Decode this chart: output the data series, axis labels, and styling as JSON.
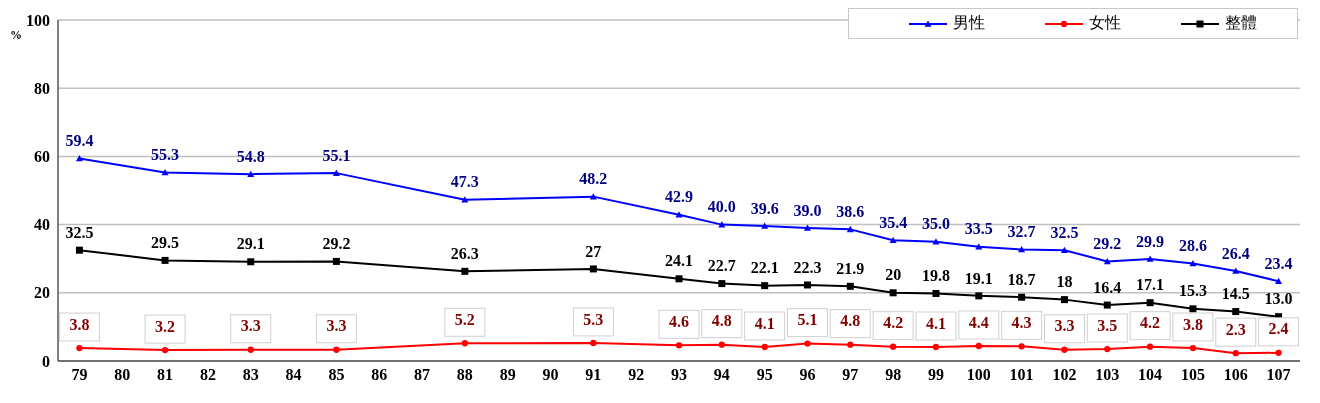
{
  "chart_data": {
    "type": "line",
    "ylabel": "%",
    "x": [
      79,
      81,
      83,
      85,
      88,
      91,
      93,
      94,
      95,
      96,
      97,
      98,
      99,
      100,
      101,
      102,
      103,
      104,
      105,
      106,
      107
    ],
    "xlim": [
      78.5,
      107.5
    ],
    "xticks": [
      79,
      80,
      81,
      82,
      83,
      84,
      85,
      86,
      87,
      88,
      89,
      90,
      91,
      92,
      93,
      94,
      95,
      96,
      97,
      98,
      99,
      100,
      101,
      102,
      103,
      104,
      105,
      106,
      107
    ],
    "ylim": [
      0,
      100
    ],
    "yticks": [
      0,
      20,
      40,
      60,
      80,
      100
    ],
    "grid": "y",
    "legend": "top right",
    "line_style": "solid",
    "series": [
      {
        "name": "男性",
        "color": "#0000ff",
        "marker": "triangle",
        "values": [
          59.4,
          55.3,
          54.8,
          55.1,
          47.3,
          48.2,
          42.9,
          40.0,
          39.6,
          39.0,
          38.6,
          35.4,
          35.0,
          33.5,
          32.7,
          32.5,
          29.2,
          29.9,
          28.6,
          26.4,
          23.4
        ],
        "value_labels": [
          "59.4",
          "55.3",
          "54.8",
          "55.1",
          "47.3",
          "48.2",
          "42.9",
          "40.0",
          "39.6",
          "39.0",
          "38.6",
          "35.4",
          "35.0",
          "33.5",
          "32.7",
          "32.5",
          "29.2",
          "29.9",
          "28.6",
          "26.4",
          "23.4"
        ]
      },
      {
        "name": "女性",
        "color": "#ff0000",
        "marker": "circle",
        "values": [
          3.8,
          3.2,
          3.3,
          3.3,
          5.2,
          5.3,
          4.6,
          4.8,
          4.1,
          5.1,
          4.8,
          4.2,
          4.1,
          4.4,
          4.3,
          3.3,
          3.5,
          4.2,
          3.8,
          2.3,
          2.4
        ],
        "value_labels": [
          "3.8",
          "3.2",
          "3.3",
          "3.3",
          "5.2",
          "5.3",
          "4.6",
          "4.8",
          "4.1",
          "5.1",
          "4.8",
          "4.2",
          "4.1",
          "4.4",
          "4.3",
          "3.3",
          "3.5",
          "4.2",
          "3.8",
          "2.3",
          "2.4"
        ]
      },
      {
        "name": "整體",
        "color": "#000000",
        "marker": "square",
        "values": [
          32.5,
          29.5,
          29.1,
          29.2,
          26.3,
          27,
          24.1,
          22.7,
          22.1,
          22.3,
          21.9,
          20,
          19.8,
          19.1,
          18.7,
          18,
          16.4,
          17.1,
          15.3,
          14.5,
          13.0
        ],
        "value_labels": [
          "32.5",
          "29.5",
          "29.1",
          "29.2",
          "26.3",
          "27",
          "24.1",
          "22.7",
          "22.1",
          "22.3",
          "21.9",
          "20",
          "19.8",
          "19.1",
          "18.7",
          "18",
          "16.4",
          "17.1",
          "15.3",
          "14.5",
          "13.0"
        ]
      }
    ]
  }
}
